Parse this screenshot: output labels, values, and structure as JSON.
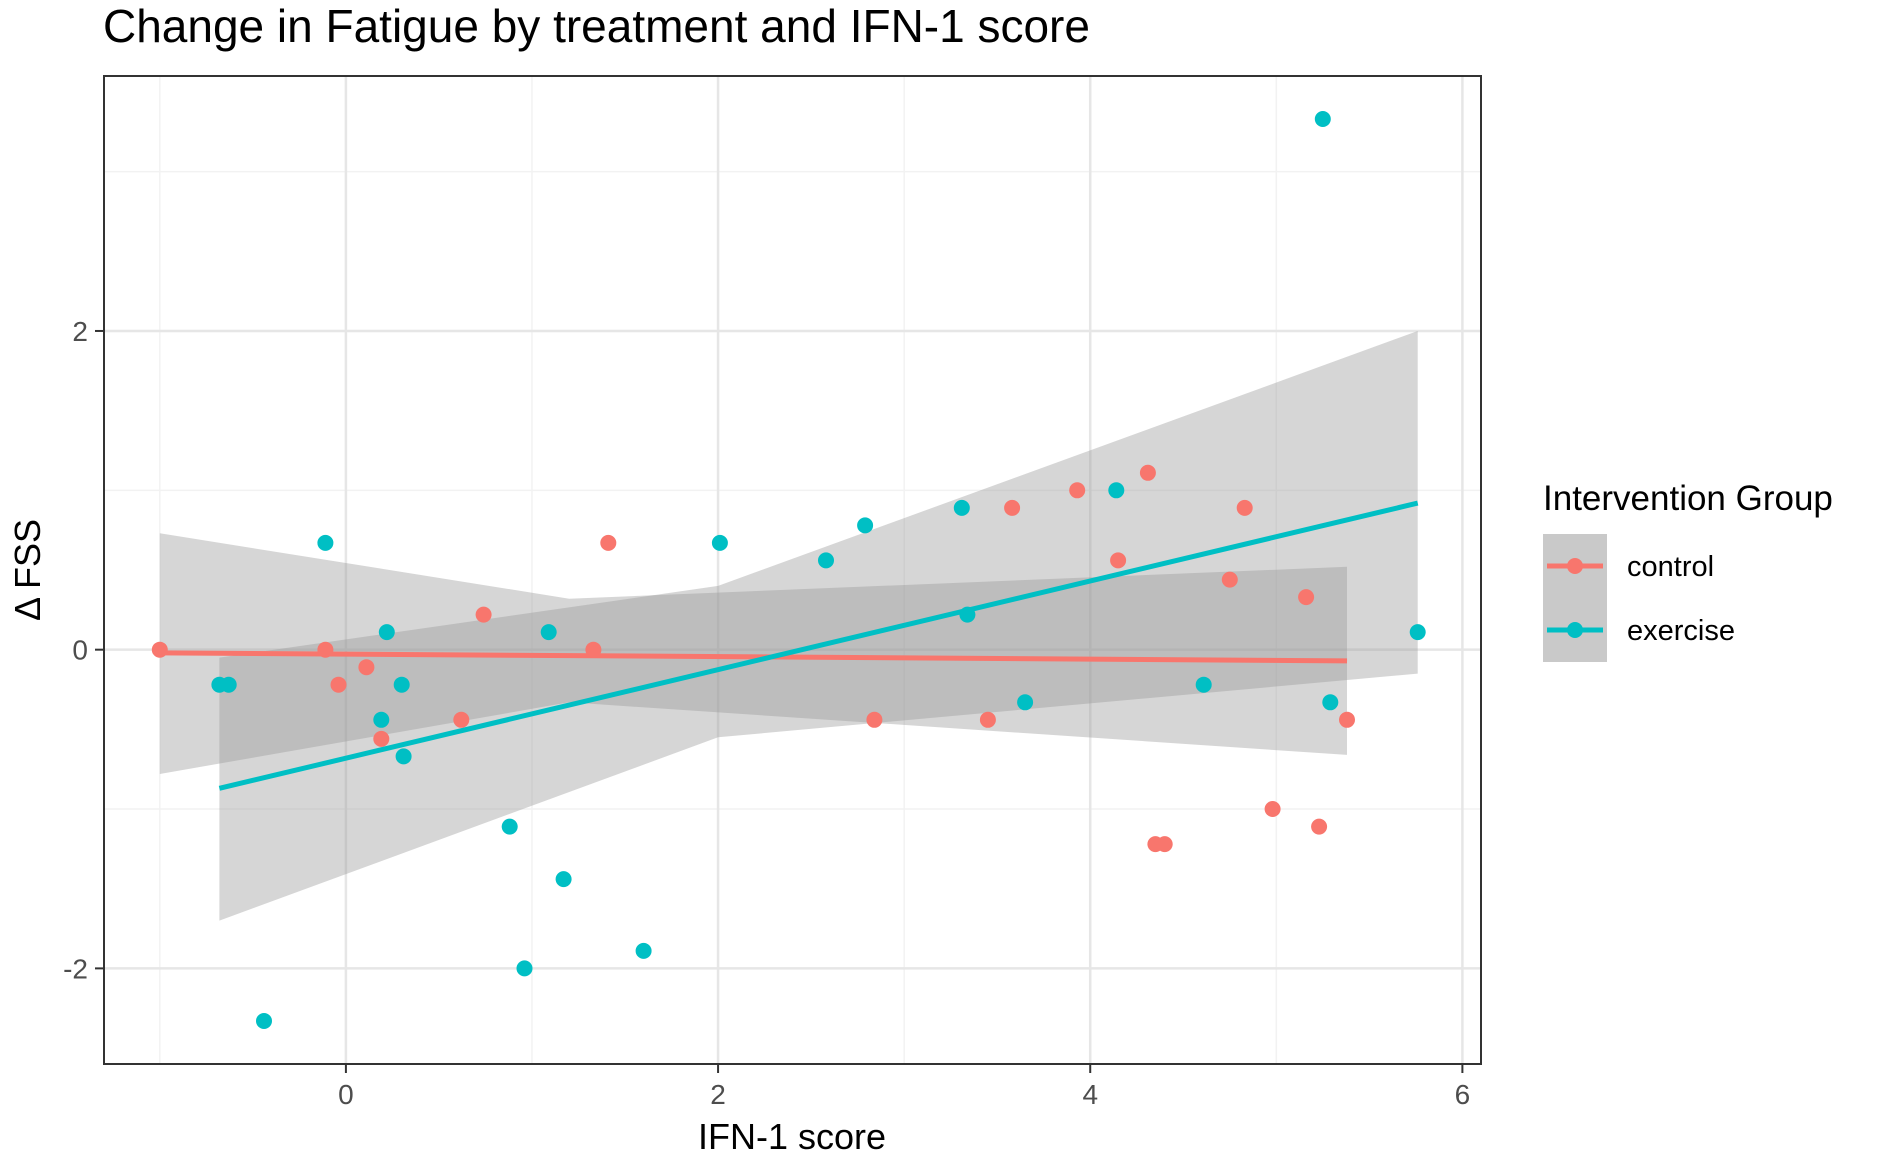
{
  "chart_data": {
    "type": "scatter",
    "title": "Change in Fatigue by treatment and IFN-1 score",
    "xlabel": "IFN-1 score",
    "ylabel": "Δ FSS",
    "xlim": [
      -1.3,
      6.1
    ],
    "ylim": [
      -2.6,
      3.6
    ],
    "x_ticks": [
      0,
      2,
      4,
      6
    ],
    "y_ticks": [
      -2,
      0,
      2
    ],
    "x_tick_labels": [
      "0",
      "2",
      "4",
      "6"
    ],
    "y_tick_labels": [
      "-2",
      "0",
      "2"
    ],
    "grid": true,
    "legend": {
      "title": "Intervention Group",
      "placement": "right"
    },
    "series": [
      {
        "name": "control",
        "color": "#F8766D",
        "points": [
          [
            -1.0,
            0.0
          ],
          [
            -0.11,
            0.0
          ],
          [
            -0.04,
            -0.22
          ],
          [
            0.11,
            -0.11
          ],
          [
            0.19,
            -0.56
          ],
          [
            0.62,
            -0.44
          ],
          [
            0.74,
            0.22
          ],
          [
            1.33,
            0.0
          ],
          [
            1.41,
            0.67
          ],
          [
            2.84,
            -0.44
          ],
          [
            3.45,
            -0.44
          ],
          [
            3.58,
            0.89
          ],
          [
            3.93,
            1.0
          ],
          [
            4.15,
            0.56
          ],
          [
            4.31,
            1.11
          ],
          [
            4.35,
            -1.22
          ],
          [
            4.4,
            -1.22
          ],
          [
            4.75,
            0.44
          ],
          [
            4.83,
            0.89
          ],
          [
            4.98,
            -1.0
          ],
          [
            5.16,
            0.33
          ],
          [
            5.23,
            -1.11
          ],
          [
            5.38,
            -0.44
          ]
        ],
        "fit": {
          "x": [
            -1.0,
            5.38
          ],
          "y": [
            -0.02,
            -0.07
          ]
        },
        "ci": {
          "x": [
            -1.0,
            1.2,
            5.38
          ],
          "upper": [
            0.73,
            0.32,
            0.52
          ],
          "lower": [
            -0.78,
            -0.33,
            -0.66
          ]
        }
      },
      {
        "name": "exercise",
        "color": "#00BFC4",
        "points": [
          [
            -0.68,
            -0.22
          ],
          [
            -0.63,
            -0.22
          ],
          [
            -0.44,
            -2.33
          ],
          [
            -0.11,
            0.67
          ],
          [
            0.19,
            -0.44
          ],
          [
            0.22,
            0.11
          ],
          [
            0.3,
            -0.22
          ],
          [
            0.31,
            -0.67
          ],
          [
            0.88,
            -1.11
          ],
          [
            0.96,
            -2.0
          ],
          [
            1.09,
            0.11
          ],
          [
            1.17,
            -1.44
          ],
          [
            1.6,
            -1.89
          ],
          [
            2.01,
            0.67
          ],
          [
            2.58,
            0.56
          ],
          [
            2.79,
            0.78
          ],
          [
            3.31,
            0.89
          ],
          [
            3.34,
            0.22
          ],
          [
            3.65,
            -0.33
          ],
          [
            4.14,
            1.0
          ],
          [
            4.61,
            -0.22
          ],
          [
            5.25,
            3.33
          ],
          [
            5.29,
            -0.33
          ],
          [
            5.76,
            0.11
          ]
        ],
        "fit": {
          "x": [
            -0.68,
            5.76
          ],
          "y": [
            -0.87,
            0.92
          ]
        },
        "ci": {
          "x": [
            -0.68,
            2.0,
            5.76
          ],
          "upper": [
            -0.05,
            0.4,
            2.0
          ],
          "lower": [
            -1.7,
            -0.55,
            -0.15
          ]
        }
      }
    ]
  }
}
